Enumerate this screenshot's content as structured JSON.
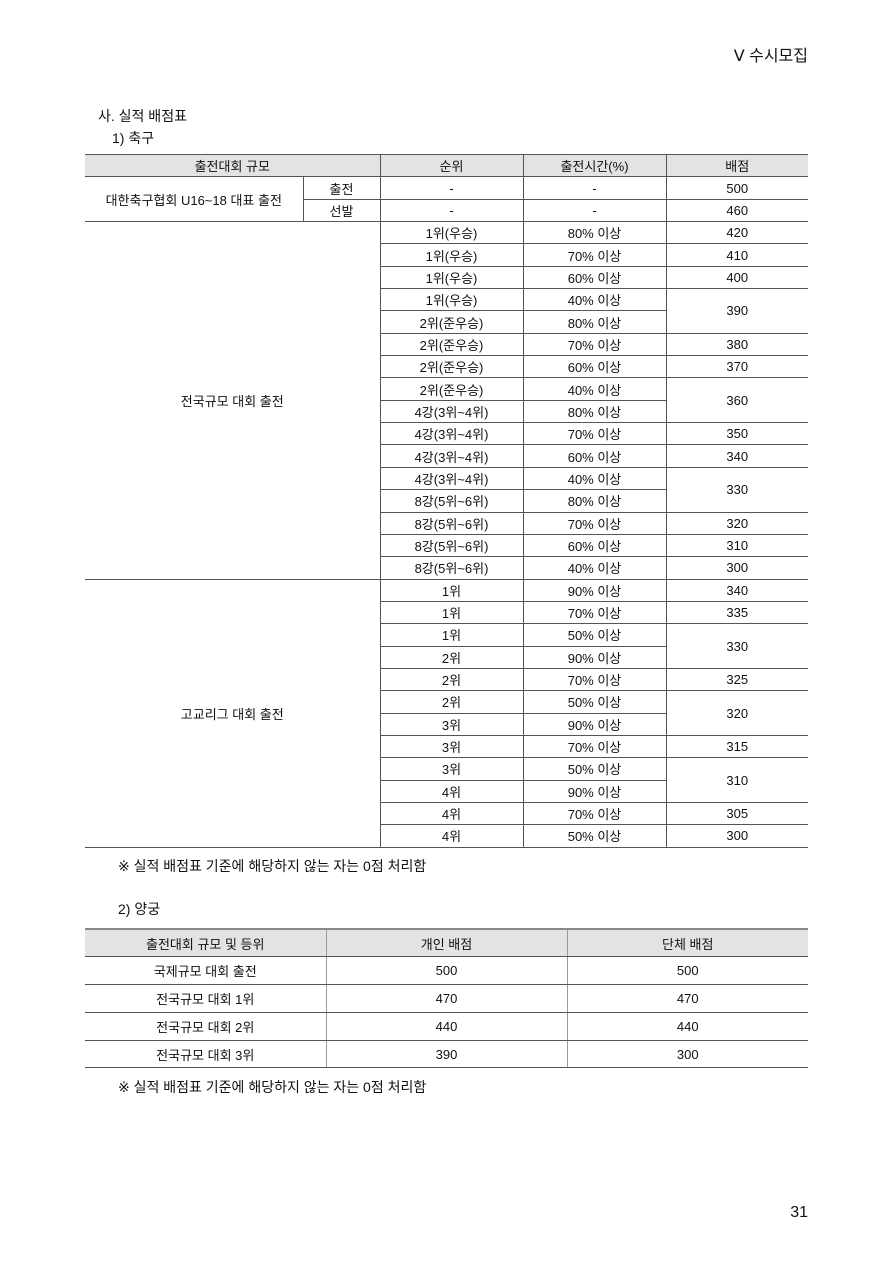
{
  "header": {
    "chapter": "Ⅴ  수시모집"
  },
  "section_title": "사. 실적 배점표",
  "soccer": {
    "title": "1) 축구",
    "columns": [
      "출전대회 규모",
      "순위",
      "출전시간(%)",
      "배점"
    ],
    "groups": [
      {
        "name": "대한축구협회 U16~18 대표 출전",
        "rows": [
          {
            "sub": "출전",
            "rank": "-",
            "time": "-",
            "score": "500",
            "span": 1
          },
          {
            "sub": "선발",
            "rank": "-",
            "time": "-",
            "score": "460",
            "span": 1
          }
        ]
      },
      {
        "name": "전국규모 대회 출전",
        "rows": [
          {
            "rank": "1위(우승)",
            "time": "80% 이상",
            "score": "420",
            "span": 1
          },
          {
            "rank": "1위(우승)",
            "time": "70% 이상",
            "score": "410",
            "span": 1
          },
          {
            "rank": "1위(우승)",
            "time": "60% 이상",
            "score": "400",
            "span": 1
          },
          {
            "rank": "1위(우승)",
            "time": "40% 이상",
            "score": "390",
            "span": 2
          },
          {
            "rank": "2위(준우승)",
            "time": "80% 이상",
            "score": null,
            "span": 0
          },
          {
            "rank": "2위(준우승)",
            "time": "70% 이상",
            "score": "380",
            "span": 1
          },
          {
            "rank": "2위(준우승)",
            "time": "60% 이상",
            "score": "370",
            "span": 1
          },
          {
            "rank": "2위(준우승)",
            "time": "40% 이상",
            "score": "360",
            "span": 2
          },
          {
            "rank": "4강(3위~4위)",
            "time": "80% 이상",
            "score": null,
            "span": 0
          },
          {
            "rank": "4강(3위~4위)",
            "time": "70% 이상",
            "score": "350",
            "span": 1
          },
          {
            "rank": "4강(3위~4위)",
            "time": "60% 이상",
            "score": "340",
            "span": 1
          },
          {
            "rank": "4강(3위~4위)",
            "time": "40% 이상",
            "score": "330",
            "span": 2
          },
          {
            "rank": "8강(5위~6위)",
            "time": "80% 이상",
            "score": null,
            "span": 0
          },
          {
            "rank": "8강(5위~6위)",
            "time": "70% 이상",
            "score": "320",
            "span": 1
          },
          {
            "rank": "8강(5위~6위)",
            "time": "60% 이상",
            "score": "310",
            "span": 1
          },
          {
            "rank": "8강(5위~6위)",
            "time": "40% 이상",
            "score": "300",
            "span": 1
          }
        ]
      },
      {
        "name": "고교리그 대회 출전",
        "rows": [
          {
            "rank": "1위",
            "time": "90% 이상",
            "score": "340",
            "span": 1
          },
          {
            "rank": "1위",
            "time": "70% 이상",
            "score": "335",
            "span": 1
          },
          {
            "rank": "1위",
            "time": "50% 이상",
            "score": "330",
            "span": 2
          },
          {
            "rank": "2위",
            "time": "90% 이상",
            "score": null,
            "span": 0
          },
          {
            "rank": "2위",
            "time": "70% 이상",
            "score": "325",
            "span": 1
          },
          {
            "rank": "2위",
            "time": "50% 이상",
            "score": "320",
            "span": 2
          },
          {
            "rank": "3위",
            "time": "90% 이상",
            "score": null,
            "span": 0
          },
          {
            "rank": "3위",
            "time": "70% 이상",
            "score": "315",
            "span": 1
          },
          {
            "rank": "3위",
            "time": "50% 이상",
            "score": "310",
            "span": 2
          },
          {
            "rank": "4위",
            "time": "90% 이상",
            "score": null,
            "span": 0
          },
          {
            "rank": "4위",
            "time": "70% 이상",
            "score": "305",
            "span": 1
          },
          {
            "rank": "4위",
            "time": "50% 이상",
            "score": "300",
            "span": 1
          }
        ]
      }
    ],
    "note": "※ 실적 배점표 기준에 해당하지 않는 자는 0점 처리함"
  },
  "archery": {
    "title": "2) 양궁",
    "columns": [
      "출전대회 규모 및 등위",
      "개인 배점",
      "단체 배점"
    ],
    "rows": [
      [
        "국제규모 대회 출전",
        "500",
        "500"
      ],
      [
        "전국규모 대회 1위",
        "470",
        "470"
      ],
      [
        "전국규모 대회 2위",
        "440",
        "440"
      ],
      [
        "전국규모 대회 3위",
        "390",
        "300"
      ]
    ],
    "note": "※ 실적 배점표 기준에 해당하지 않는 자는 0점 처리함"
  },
  "page_number": "31"
}
